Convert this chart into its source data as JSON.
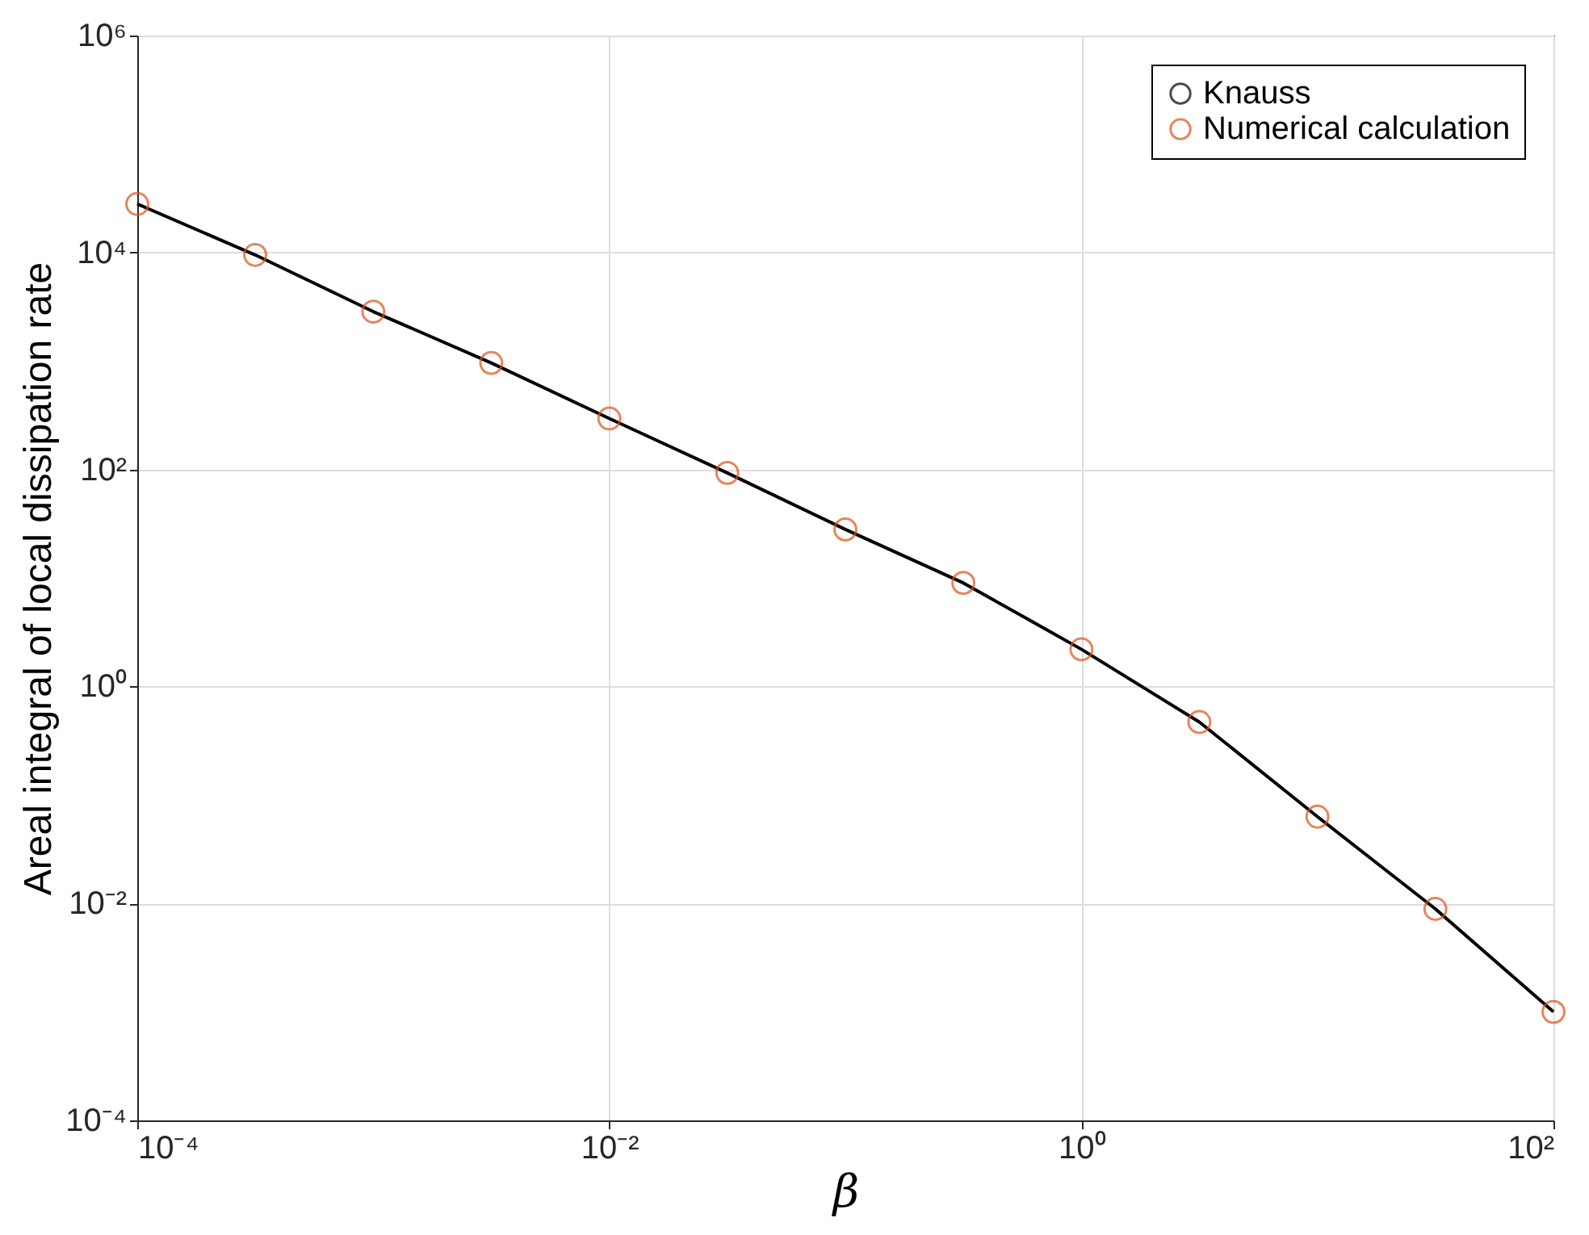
{
  "chart_data": {
    "type": "line",
    "xlabel": "β",
    "ylabel": "Areal integral of local dissipation rate",
    "x": [
      0.0001,
      0.000316,
      0.001,
      0.00316,
      0.01,
      0.0316,
      0.1,
      0.316,
      1,
      3.16,
      10,
      31.6,
      100
    ],
    "series": [
      {
        "name": "Knauss",
        "color": "#000000",
        "marker": "none",
        "values": [
          28000,
          9500,
          2850,
          960,
          295,
          93,
          28,
          9,
          2.2,
          0.47,
          0.063,
          0.0089,
          0.001
        ]
      },
      {
        "name": "Numerical calculation",
        "color": "#d95319",
        "type": "scatter",
        "marker": "circle",
        "values": [
          28000,
          9500,
          2850,
          960,
          295,
          93,
          28,
          9,
          2.2,
          0.47,
          0.063,
          0.0089,
          0.001
        ]
      }
    ],
    "log": "xy",
    "xlim": [
      0.0001,
      100
    ],
    "ylim": [
      0.0001,
      1000000
    ],
    "xticks": [
      {
        "value": 0.0001,
        "label": "10⁻⁴"
      },
      {
        "value": 0.01,
        "label": "10⁻²"
      },
      {
        "value": 1,
        "label": "10⁰"
      },
      {
        "value": 100,
        "label": "10²"
      }
    ],
    "yticks": [
      {
        "value": 0.0001,
        "label": "10⁻⁴"
      },
      {
        "value": 0.01,
        "label": "10⁻²"
      },
      {
        "value": 1,
        "label": "10⁰"
      },
      {
        "value": 100,
        "label": "10²"
      },
      {
        "value": 10000,
        "label": "10⁴"
      },
      {
        "value": 1000000,
        "label": "10⁶"
      }
    ],
    "grid": true,
    "legend": "top right"
  }
}
